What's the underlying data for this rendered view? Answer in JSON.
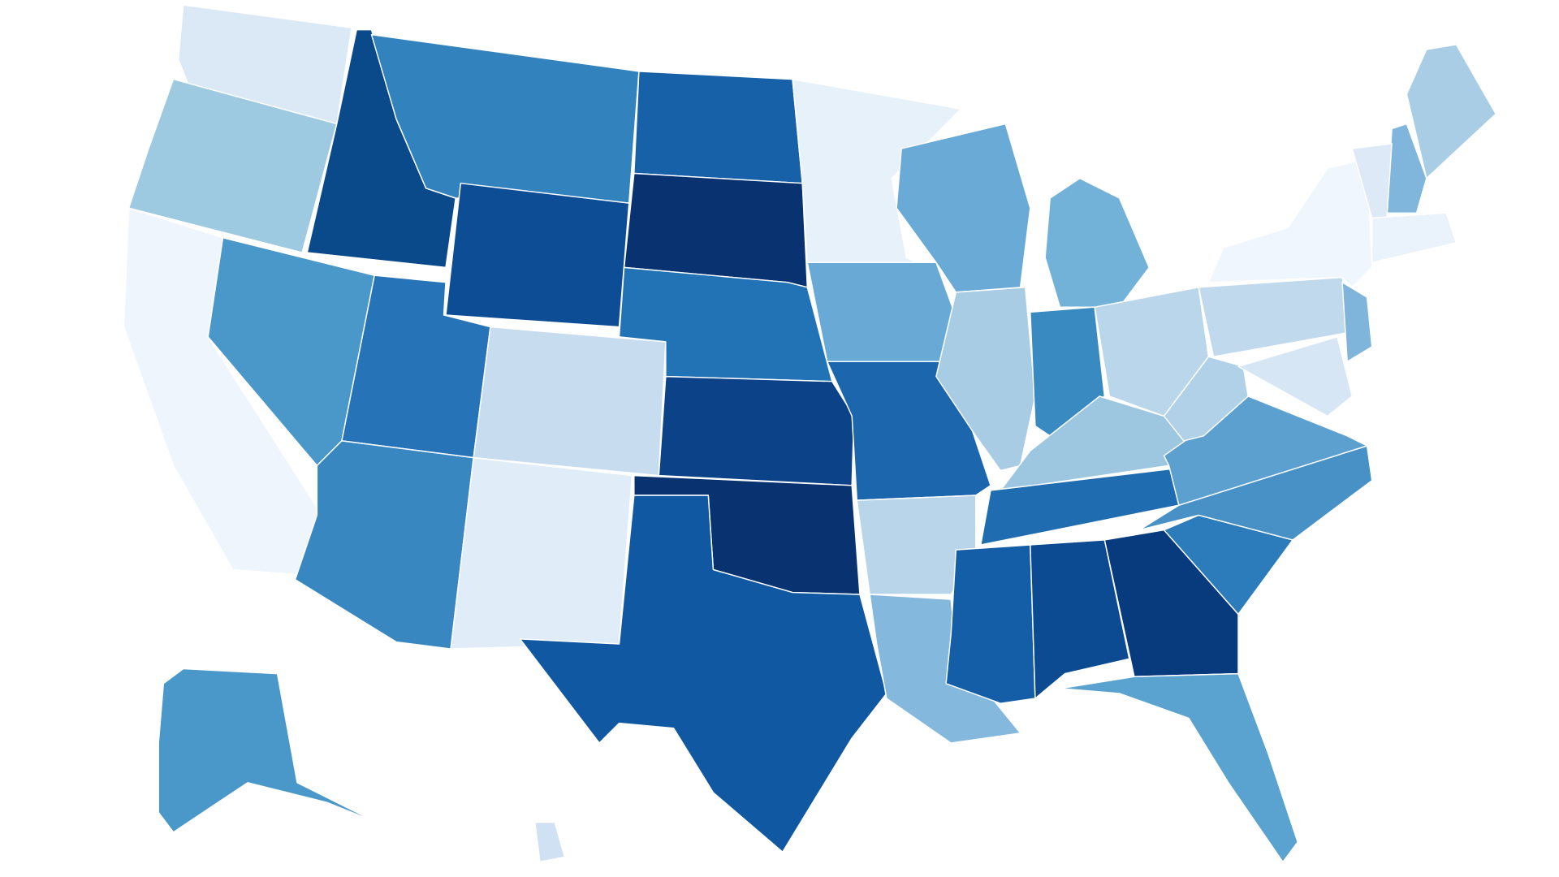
{
  "map": {
    "type": "choropleth",
    "regions": [
      {
        "color": "#dbe9f6"
      },
      {
        "color": "#9ecae1"
      },
      {
        "color": "#eef5fc"
      },
      {
        "color": "#4a98c9"
      },
      {
        "color": "#0b4a8a"
      },
      {
        "color": "#3282bd"
      },
      {
        "color": "#0d4d96"
      },
      {
        "color": "#2673b8"
      },
      {
        "color": "#c7dcef"
      },
      {
        "color": "#3887c1"
      },
      {
        "color": "#e0ecf8"
      },
      {
        "color": "#1761a8"
      },
      {
        "color": "#083370"
      },
      {
        "color": "#2272b6"
      },
      {
        "color": "#0c4288"
      },
      {
        "color": "#083370"
      },
      {
        "color": "#1158a3"
      },
      {
        "color": "#e7f1fa"
      },
      {
        "color": "#68a9d6"
      },
      {
        "color": "#1c66ad"
      },
      {
        "color": "#b8d5ea"
      },
      {
        "color": "#84b8dd"
      },
      {
        "color": "#6aaad6"
      },
      {
        "color": "#a8cce4"
      },
      {
        "color": "#73b2d8"
      },
      {
        "color": "#3a8ac2"
      },
      {
        "color": "#bad6eb"
      },
      {
        "color": "#9dc7e1"
      },
      {
        "color": "#1f6cb0"
      },
      {
        "color": "#135ea6"
      },
      {
        "color": "#0c4a92"
      },
      {
        "color": "#083a7e"
      },
      {
        "color": "#5aa2cf"
      },
      {
        "color": "#2c7bba"
      },
      {
        "color": "#4791c6"
      },
      {
        "color": "#5ca0d0"
      },
      {
        "color": "#b0d1e7"
      },
      {
        "color": "#c1d9ed"
      },
      {
        "color": "#f0f6fd"
      },
      {
        "color": "#7fb5db"
      },
      {
        "color": "#d6e6f4"
      },
      {
        "color": "#a8cde4"
      },
      {
        "color": "#80b6dc"
      },
      {
        "color": "#dde9f6"
      },
      {
        "color": "#eaf2fb"
      },
      {
        "color": "#4a98c9"
      },
      {
        "color": "#cfe1f2"
      }
    ]
  }
}
